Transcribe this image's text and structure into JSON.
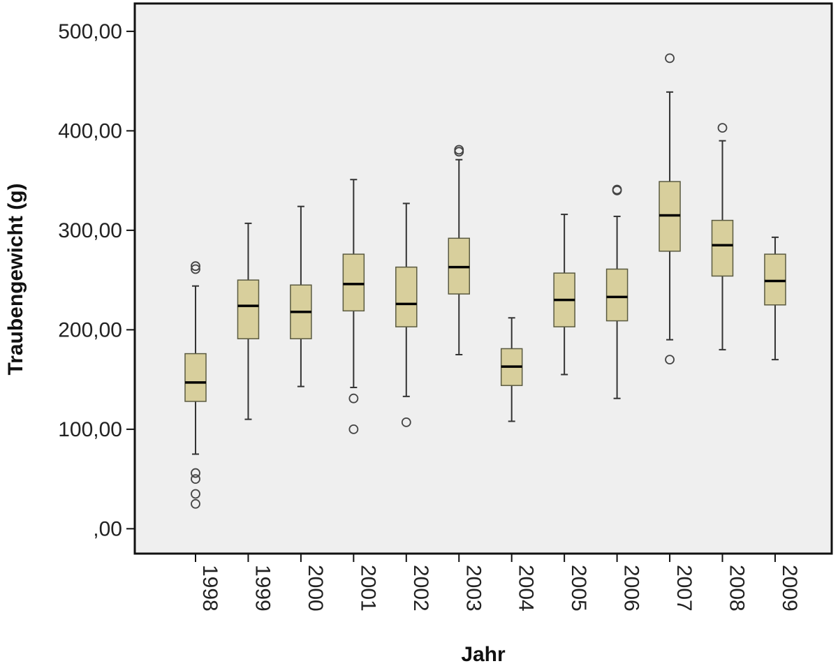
{
  "chart_data": {
    "type": "boxplot",
    "title": "",
    "xlabel": "Jahr",
    "ylabel": "Traubengewicht (g)",
    "ylim": [
      -25,
      528
    ],
    "y_ticks": [
      {
        "value": 0,
        "label": ",00"
      },
      {
        "value": 100,
        "label": "100,00"
      },
      {
        "value": 200,
        "label": "200,00"
      },
      {
        "value": 300,
        "label": "300,00"
      },
      {
        "value": 400,
        "label": "400,00"
      },
      {
        "value": 500,
        "label": "500,00"
      }
    ],
    "grid": false,
    "colors": {
      "plot_bg": "#efefef",
      "box_fill": "#d8cf9c",
      "box_stroke": "#5a5a40",
      "axis": "#111111",
      "whisker": "#333333",
      "median": "#000000",
      "outlier": "#444444"
    },
    "categories": [
      "1998",
      "1999",
      "2000",
      "2001",
      "2002",
      "2003",
      "2004",
      "2005",
      "2006",
      "2007",
      "2008",
      "2009"
    ],
    "boxes": [
      {
        "category": "1998",
        "whisker_low": 75,
        "q1": 128,
        "median": 147,
        "q3": 176,
        "whisker_high": 244,
        "outliers": [
          25,
          35,
          50,
          56,
          261,
          264
        ]
      },
      {
        "category": "1999",
        "whisker_low": 110,
        "q1": 191,
        "median": 224,
        "q3": 250,
        "whisker_high": 307,
        "outliers": []
      },
      {
        "category": "2000",
        "whisker_low": 143,
        "q1": 191,
        "median": 218,
        "q3": 245,
        "whisker_high": 324,
        "outliers": []
      },
      {
        "category": "2001",
        "whisker_low": 142,
        "q1": 219,
        "median": 246,
        "q3": 276,
        "whisker_high": 351,
        "outliers": [
          100,
          131
        ]
      },
      {
        "category": "2002",
        "whisker_low": 133,
        "q1": 203,
        "median": 226,
        "q3": 263,
        "whisker_high": 327,
        "outliers": [
          107
        ]
      },
      {
        "category": "2003",
        "whisker_low": 175,
        "q1": 236,
        "median": 263,
        "q3": 292,
        "whisker_high": 371,
        "outliers": [
          379,
          381
        ]
      },
      {
        "category": "2004",
        "whisker_low": 108,
        "q1": 144,
        "median": 163,
        "q3": 181,
        "whisker_high": 212,
        "outliers": []
      },
      {
        "category": "2005",
        "whisker_low": 155,
        "q1": 203,
        "median": 230,
        "q3": 257,
        "whisker_high": 316,
        "outliers": []
      },
      {
        "category": "2006",
        "whisker_low": 131,
        "q1": 209,
        "median": 233,
        "q3": 261,
        "whisker_high": 314,
        "outliers": [
          340,
          341
        ]
      },
      {
        "category": "2007",
        "whisker_low": 190,
        "q1": 279,
        "median": 315,
        "q3": 349,
        "whisker_high": 439,
        "outliers": [
          170,
          473
        ]
      },
      {
        "category": "2008",
        "whisker_low": 180,
        "q1": 254,
        "median": 285,
        "q3": 310,
        "whisker_high": 390,
        "outliers": [
          403
        ]
      },
      {
        "category": "2009",
        "whisker_low": 170,
        "q1": 225,
        "median": 249,
        "q3": 276,
        "whisker_high": 293,
        "outliers": []
      }
    ]
  }
}
